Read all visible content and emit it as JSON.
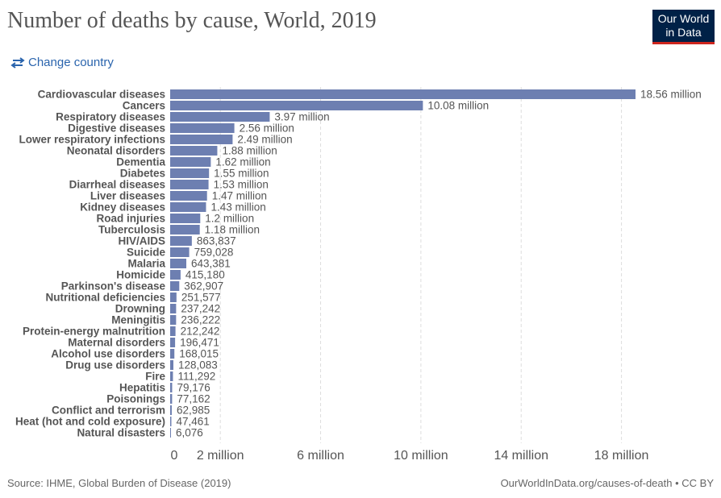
{
  "header": {
    "title": "Number of deaths by cause, World, 2019",
    "logo_line1": "Our World",
    "logo_line2": "in Data",
    "change_country_label": "Change country",
    "icon": "swap-arrows-icon"
  },
  "footer": {
    "source": "Source: IHME, Global Burden of Disease (2019)",
    "url": "OurWorldInData.org/causes-of-death • CC BY"
  },
  "colors": {
    "bar": "#6d7fb1",
    "grid": "#dddddd",
    "accent": "#2a64ad",
    "logo_bg": "#002147",
    "logo_border": "#ce261e"
  },
  "chart_data": {
    "type": "bar",
    "orientation": "horizontal",
    "title": "Number of deaths by cause, World, 2019",
    "grid": true,
    "xlim": [
      0,
      18560000
    ],
    "xticks": [
      0,
      2000000,
      6000000,
      10000000,
      14000000,
      18000000
    ],
    "xtick_labels": [
      "0",
      "2 million",
      "6 million",
      "10 million",
      "14 million",
      "18 million"
    ],
    "categories": [
      "Cardiovascular diseases",
      "Cancers",
      "Respiratory diseases",
      "Digestive diseases",
      "Lower respiratory infections",
      "Neonatal disorders",
      "Dementia",
      "Diabetes",
      "Diarrheal diseases",
      "Liver diseases",
      "Kidney diseases",
      "Road injuries",
      "Tuberculosis",
      "HIV/AIDS",
      "Suicide",
      "Malaria",
      "Homicide",
      "Parkinson's disease",
      "Nutritional deficiencies",
      "Drowning",
      "Meningitis",
      "Protein-energy malnutrition",
      "Maternal disorders",
      "Alcohol use disorders",
      "Drug use disorders",
      "Fire",
      "Hepatitis",
      "Poisonings",
      "Conflict and terrorism",
      "Heat (hot and cold exposure)",
      "Natural disasters"
    ],
    "values": [
      18560000,
      10080000,
      3970000,
      2560000,
      2490000,
      1880000,
      1620000,
      1550000,
      1530000,
      1470000,
      1430000,
      1200000,
      1180000,
      863837,
      759028,
      643381,
      415180,
      362907,
      251577,
      237242,
      236222,
      212242,
      196471,
      168015,
      128083,
      111292,
      79176,
      77162,
      62985,
      47461,
      6076
    ],
    "value_labels": [
      "18.56 million",
      "10.08 million",
      "3.97 million",
      "2.56 million",
      "2.49 million",
      "1.88 million",
      "1.62 million",
      "1.55 million",
      "1.53 million",
      "1.47 million",
      "1.43 million",
      "1.2 million",
      "1.18 million",
      "863,837",
      "759,028",
      "643,381",
      "415,180",
      "362,907",
      "251,577",
      "237,242",
      "236,222",
      "212,242",
      "196,471",
      "168,015",
      "128,083",
      "111,292",
      "79,176",
      "77,162",
      "62,985",
      "47,461",
      "6,076"
    ]
  }
}
